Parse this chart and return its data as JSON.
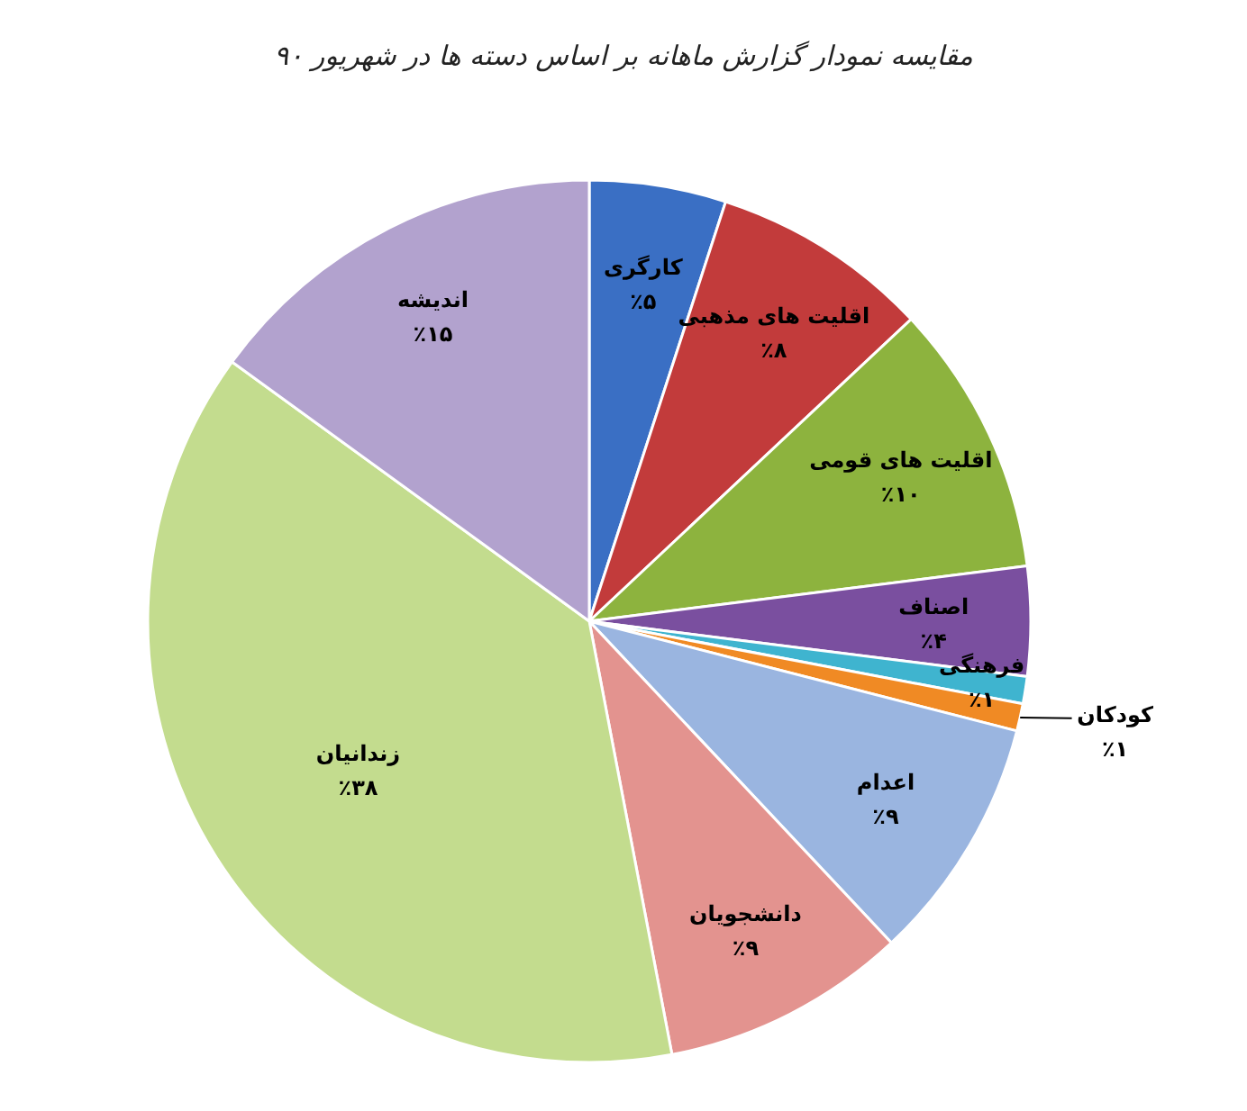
{
  "chart_data": {
    "type": "pie",
    "title": "مقایسه نمودار گزارش ماهانه بر اساس دسته ها در شهریور ۹۰",
    "categories": [
      "کارگری",
      "اقلیت های مذهبی",
      "اقلیت های قومی",
      "اصناف",
      "فرهنگی",
      "کودکان",
      "اعدام",
      "دانشجویان",
      "زندانیان",
      "اندیشه"
    ],
    "values": [
      5,
      8,
      10,
      4,
      1,
      1,
      9,
      9,
      38,
      15
    ],
    "value_labels": [
      "٪۵",
      "٪۸",
      "٪۱۰",
      "٪۴",
      "٪۱",
      "٪۱",
      "٪۹",
      "٪۹",
      "٪۳۸",
      "٪۱۵"
    ],
    "colors": [
      "#3a6fc4",
      "#c23b3b",
      "#8db33e",
      "#7a4f9f",
      "#3fb4cf",
      "#f08a24",
      "#9ab5e0",
      "#e3938f",
      "#c3dc8e",
      "#b2a2ce"
    ]
  }
}
